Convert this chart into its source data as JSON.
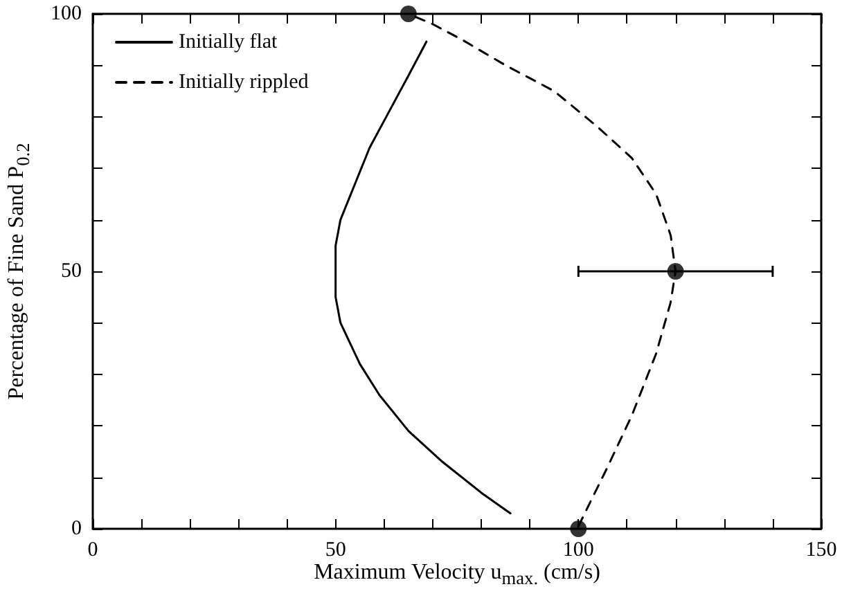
{
  "chart_data": {
    "type": "line",
    "xlabel": "Maximum Velocity u$_{max.}$ (cm/s)",
    "ylabel": "Percentage of Fine Sand P$_{0.2}$",
    "xlim": [
      0,
      150
    ],
    "ylim": [
      0,
      100
    ],
    "xticks": [
      0,
      {
        "value": 10,
        "label": null
      },
      {
        "value": 20,
        "label": null
      },
      {
        "value": 30,
        "label": null
      },
      {
        "value": 40,
        "label": null
      },
      50,
      {
        "value": 60,
        "label": null
      },
      {
        "value": 70,
        "label": null
      },
      {
        "value": 80,
        "label": null
      },
      {
        "value": 90,
        "label": null
      },
      100,
      {
        "value": 110,
        "label": null
      },
      {
        "value": 120,
        "label": null
      },
      {
        "value": 130,
        "label": null
      },
      {
        "value": 140,
        "label": null
      },
      150
    ],
    "yticks": [
      0,
      {
        "value": 10,
        "label": null
      },
      {
        "value": 20,
        "label": null
      },
      {
        "value": 30,
        "label": null
      },
      {
        "value": 40,
        "label": null
      },
      50,
      {
        "value": 60,
        "label": null
      },
      {
        "value": 70,
        "label": null
      },
      {
        "value": 80,
        "label": null
      },
      {
        "value": 90,
        "label": null
      },
      100
    ],
    "grid": false,
    "legend": "top left",
    "series": [
      {
        "name": "Initially flat",
        "color": "#000000",
        "line_style": "solid",
        "marker": "none",
        "x": [
          86,
          80,
          72,
          65,
          59,
          55,
          51,
          50,
          50,
          50,
          51,
          54,
          57,
          61,
          65,
          68.7
        ],
        "values": [
          3,
          7,
          13,
          19,
          26,
          32,
          40,
          45,
          50,
          55,
          60,
          67,
          74,
          81,
          88,
          94.6
        ]
      },
      {
        "name": "Initially rippled",
        "color": "#000000",
        "line_style": "dashed",
        "marker": "none",
        "x": [
          100,
          106,
          111,
          116,
          119,
          120,
          119,
          116,
          111,
          104,
          95,
          85,
          76,
          70,
          65
        ],
        "values": [
          0.5,
          12,
          22,
          34,
          44,
          50,
          57,
          65,
          72,
          78,
          85,
          90,
          95,
          98,
          100
        ]
      },
      {
        "type": "scatter",
        "color": "#000000",
        "marker": "circle",
        "x": [
          65,
          120,
          100
        ],
        "values": [
          100,
          50,
          0
        ],
        "xerrors": [
          null,
          20,
          null
        ]
      }
    ]
  }
}
